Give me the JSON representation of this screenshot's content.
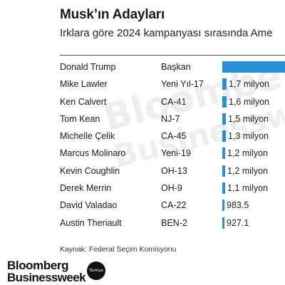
{
  "title": "Musk’ın Adayları",
  "subtitle": "Irklara göre 2024 kampanyası sırasında Ame",
  "watermark": {
    "line1": "Bloomberg",
    "line2": "Businessweek"
  },
  "chart_data": {
    "type": "bar",
    "title": "Musk’ın Adayları",
    "subtitle": "Irklara göre 2024 kampanyası sırasında Ame",
    "bar_color": "#2b8fd6",
    "rows": [
      {
        "name": "Donald Trump",
        "district": "Başkan",
        "value": null,
        "label": ""
      },
      {
        "name": "Mike Lawler",
        "district": "Yeni Yıl-17",
        "value": 1700000,
        "label": "1,7 milyon"
      },
      {
        "name": "Ken Calvert",
        "district": "CA-41",
        "value": 1600000,
        "label": "1,6 milyon"
      },
      {
        "name": "Tom Kean",
        "district": "NJ-7",
        "value": 1500000,
        "label": "1,5 milyon"
      },
      {
        "name": "Michelle Çelik",
        "district": "CA-45",
        "value": 1300000,
        "label": "1,3 milyon"
      },
      {
        "name": "Marcus Molinaro",
        "district": "Yeni-19",
        "value": 1200000,
        "label": "1,2 milyon"
      },
      {
        "name": "Kevin Coughlin",
        "district": "OH-13",
        "value": 1200000,
        "label": "1,2 milyon"
      },
      {
        "name": "Derek Merrin",
        "district": "OH-9",
        "value": 1100000,
        "label": "1,1 milyon"
      },
      {
        "name": "David Valadao",
        "district": "CA-22",
        "value": 983500,
        "label": "983.5"
      },
      {
        "name": "Austin Theriault",
        "district": "BEN-2",
        "value": 927100,
        "label": "927.1"
      }
    ]
  },
  "source": "Kaynak: Federal Seçim Komisyonu",
  "logo": {
    "line1": "Bloomberg",
    "line2": "Businessweek",
    "badge": "Türkiye"
  }
}
